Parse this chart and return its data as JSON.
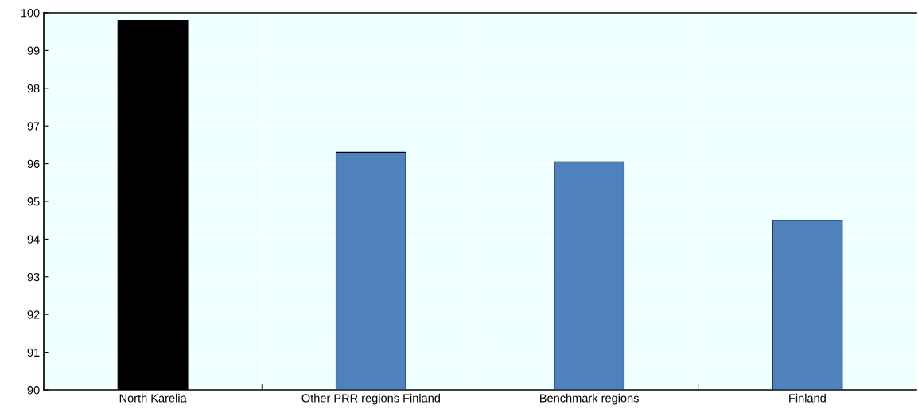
{
  "chart_data": {
    "type": "bar",
    "categories": [
      "North Karelia",
      "Other PRR regions Finland",
      "Benchmark regions",
      "Finland"
    ],
    "values": [
      99.8,
      96.3,
      96.05,
      94.5
    ],
    "colors": [
      "#000000",
      "#4f81bd",
      "#4f81bd",
      "#4f81bd"
    ],
    "ylim": [
      90,
      100
    ],
    "yticks": [
      90,
      91,
      92,
      93,
      94,
      95,
      96,
      97,
      98,
      99,
      100
    ],
    "grid": true
  }
}
